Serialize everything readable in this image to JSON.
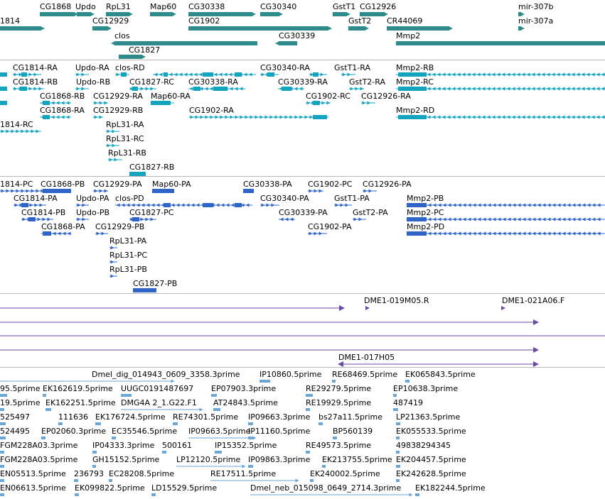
{
  "colors": {
    "gene": "#2e8b8b",
    "transcript": "#14a4c0",
    "protein": "#2f64c8",
    "clone": "#6a4aa8",
    "est": "#6aa6d6",
    "separator": "#b8b8b8"
  },
  "tracks": {
    "genes": {
      "labels": [
        "CG1868",
        "Updo",
        "RpL31",
        "Map60",
        "CG30338",
        "CG30340",
        "GstT1",
        "CG12926",
        "mir-307b",
        "1814",
        "CG12929",
        "CG1902",
        "GstT2",
        "CR44069",
        "mir-307a",
        "clos",
        "CG30339",
        "Mmp2",
        "CG1827"
      ]
    },
    "transcripts": {
      "labels": [
        "CG1814-RA",
        "Updo-RA",
        "clos-RD",
        "CG30340-RA",
        "GstT1-RA",
        "Mmp2-RB",
        "CG1814-RB",
        "Updo-RB",
        "CG1827-RC",
        "CG30338-RA",
        "CG30339-RA",
        "GstT2-RA",
        "Mmp2-RC",
        "CG1868-RB",
        "CG12929-RA",
        "Map60-RA",
        "CG1902-RC",
        "CG12926-RA",
        "CG1868-RA",
        "CG12929-RB",
        "CG1902-RA",
        "Mmp2-RD",
        "1814-RC",
        "RpL31-RA",
        "RpL31-RC",
        "RpL31-RB",
        "CG1827-RB"
      ]
    },
    "proteins": {
      "labels": [
        "1814-PC",
        "CG1868-PB",
        "CG12929-PA",
        "Map60-PA",
        "CG30338-PA",
        "CG1902-PC",
        "CG12926-PA",
        "CG1814-PA",
        "Updo-PA",
        "clos-PD",
        "CG30340-PA",
        "GstT1-PA",
        "Mmp2-PB",
        "CG1814-PB",
        "Updo-PB",
        "CG1827-PC",
        "CG30339-PA",
        "GstT2-PA",
        "Mmp2-PC",
        "CG1868-PA",
        "CG12929-PB",
        "CG1902-PA",
        "Mmp2-PD",
        "RpL31-PA",
        "RpL31-PC",
        "RpL31-PB",
        "CG1827-PB"
      ]
    },
    "clones": {
      "labels": [
        "DME1-019M05.R",
        "DME1-021A06.F",
        "DME1-017H05"
      ]
    },
    "ests": {
      "labels": [
        "Dmel_dig_014943_0609_3358.3prime",
        "IP10860.5prime",
        "RE68469.5prime",
        "EK065843.5prime",
        "95.5prime",
        "EK162619.5prime",
        "UUGC0191487697",
        "EP07903.3prime",
        "RE29279.5prime",
        "EP10638.3prime",
        "19.5prime",
        "EK162251.5prime",
        "DMG4A 2_1.G22.F1",
        "AT24843.5prime",
        "RE19929.5prime",
        "487419",
        "525497",
        "111636",
        "EK176724.5prime",
        "RE74301.5prime",
        "IP09663.3prime",
        "bs27a11.5prime",
        "LP21363.5prime",
        "524495",
        "EP02060.3prime",
        "EC35546.5prime",
        "IP09663.5prime",
        "IP11160.5prime",
        "BP560139",
        "EK055533.5prime",
        "FGM228A03.3prime",
        "IP04333.3prime",
        "500161",
        "IP15352.5prime",
        "RE49573.5prime",
        "49838294345",
        "FGM228A03.5prime",
        "GH15152.5prime",
        "LP12120.5prime",
        "IP09863.3prime",
        "EK213755.5prime",
        "EK204457.5prime",
        "EN05513.5prime",
        "236793",
        "EC28208.5prime",
        "RE17511.5prime",
        "EK240002.5prime",
        "EK242628.5prime",
        "EN06613.5prime",
        "EK099822.5prime",
        "LD15529.5prime",
        "Dmel_neb_015098_0649_2714.3prime",
        "EK182244.5prime"
      ]
    }
  }
}
